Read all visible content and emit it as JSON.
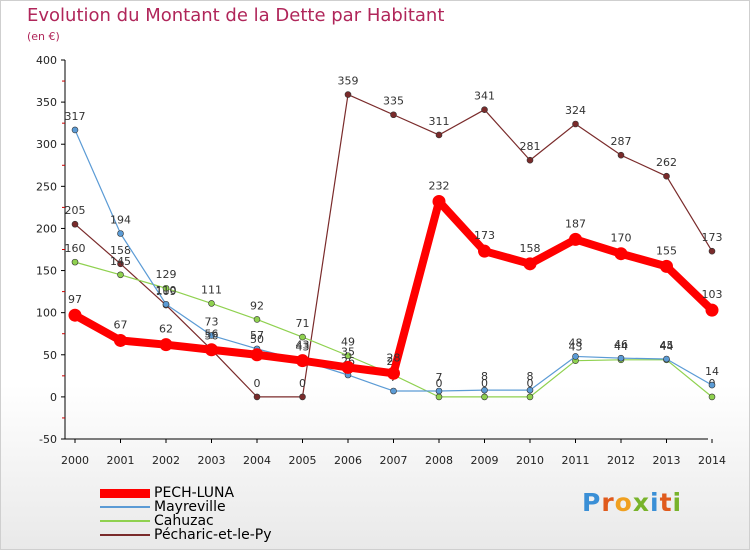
{
  "chart_data": {
    "type": "line",
    "title": "Evolution du Montant de la Dette par Habitant",
    "subtitle": "(en €)",
    "x": [
      "2000",
      "2001",
      "2002",
      "2003",
      "2004",
      "2005",
      "2006",
      "2007",
      "2008",
      "2009",
      "2010",
      "2011",
      "2012",
      "2013",
      "2014"
    ],
    "ylim": [
      -50,
      400
    ],
    "yticks": [
      "-50",
      "0",
      "50",
      "100",
      "150",
      "200",
      "250",
      "300",
      "350",
      "400"
    ],
    "grid": false,
    "legend_position": "bottom-left",
    "series": [
      {
        "name": "PECH-LUNA",
        "color": "#ff0000",
        "values": [
          97,
          67,
          62,
          56,
          50,
          43,
          35,
          28,
          232,
          173,
          158,
          187,
          170,
          155,
          103
        ],
        "labels": [
          "97",
          "67",
          "62",
          "56",
          "50",
          "43",
          "35",
          "28",
          "232",
          "173",
          "158",
          "187",
          "170",
          "155",
          "103"
        ]
      },
      {
        "name": "Mayreville",
        "color": "#5b9bd5",
        "values": [
          317,
          194,
          110,
          73,
          57,
          43,
          26,
          7,
          7,
          8,
          8,
          48,
          46,
          45,
          14
        ],
        "labels": [
          "317",
          "194",
          "110",
          "73",
          "57",
          "43",
          "26",
          "7",
          "7",
          "8",
          "8",
          "48",
          "46",
          "45",
          "14"
        ]
      },
      {
        "name": "Cahuzac",
        "color": "#8fd14f",
        "values": [
          160,
          145,
          129,
          111,
          92,
          71,
          49,
          26,
          0,
          0,
          0,
          43,
          44,
          44,
          0
        ],
        "labels": [
          "160",
          "145",
          "129",
          "111",
          "92",
          "71",
          "49",
          "26",
          "0",
          "0",
          "0",
          "43",
          "44",
          "44",
          "0"
        ]
      },
      {
        "name": "Pécharic-et-le-Py",
        "color": "#7a2b2b",
        "values": [
          205,
          158,
          109,
          56,
          0,
          0,
          359,
          335,
          311,
          341,
          281,
          324,
          287,
          262,
          173
        ],
        "labels": [
          "205",
          "158",
          "109",
          "56",
          "0",
          "0",
          "359",
          "335",
          "311",
          "341",
          "281",
          "324",
          "287",
          "262",
          "173"
        ]
      }
    ]
  },
  "logo": {
    "text": "Proxiti"
  }
}
